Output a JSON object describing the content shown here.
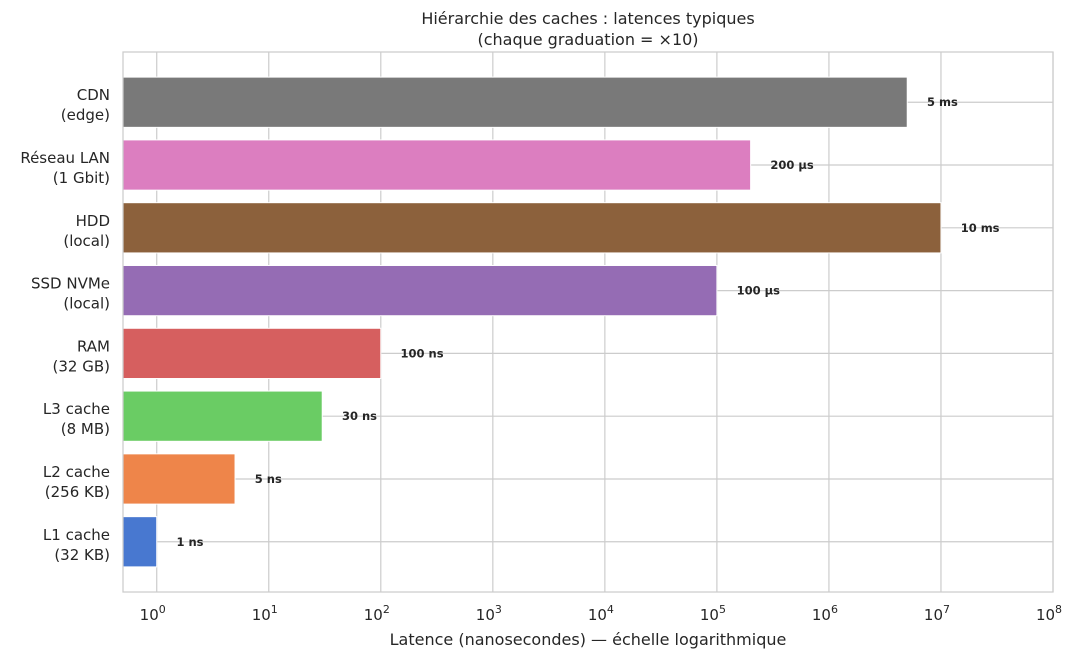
{
  "chart_data": {
    "type": "bar",
    "orientation": "horizontal",
    "title": "Hiérarchie des caches : latences typiques",
    "subtitle": "(chaque graduation = ×10)",
    "xlabel": "Latence (nanosecondes) — échelle logarithmique",
    "ylabel": "",
    "xscale": "log",
    "xlim": [
      0.5,
      100000000
    ],
    "grid": true,
    "categories": [
      [
        "L1 cache",
        "(32 KB)"
      ],
      [
        "L2 cache",
        "(256 KB)"
      ],
      [
        "L3 cache",
        "(8 MB)"
      ],
      [
        "RAM",
        "(32 GB)"
      ],
      [
        "SSD NVMe",
        "(local)"
      ],
      [
        "HDD",
        "(local)"
      ],
      [
        "Réseau LAN",
        "(1 Gbit)"
      ],
      [
        "CDN",
        "(edge)"
      ]
    ],
    "values": [
      1,
      5,
      30,
      100,
      100000,
      10000000,
      200000,
      5000000
    ],
    "data_labels": [
      "1 ns",
      "5 ns",
      "30 ns",
      "100 ns",
      "100 µs",
      "10 ms",
      "200 µs",
      "5 ms"
    ],
    "colors": [
      "#4878d0",
      "#ee854a",
      "#6acc64",
      "#d65f5f",
      "#956cb4",
      "#8c613c",
      "#dc7ec0",
      "#797979"
    ],
    "x_ticks": [
      {
        "base": "10",
        "exp": "0"
      },
      {
        "base": "10",
        "exp": "1"
      },
      {
        "base": "10",
        "exp": "2"
      },
      {
        "base": "10",
        "exp": "3"
      },
      {
        "base": "10",
        "exp": "4"
      },
      {
        "base": "10",
        "exp": "5"
      },
      {
        "base": "10",
        "exp": "6"
      },
      {
        "base": "10",
        "exp": "7"
      },
      {
        "base": "10",
        "exp": "8"
      }
    ]
  }
}
